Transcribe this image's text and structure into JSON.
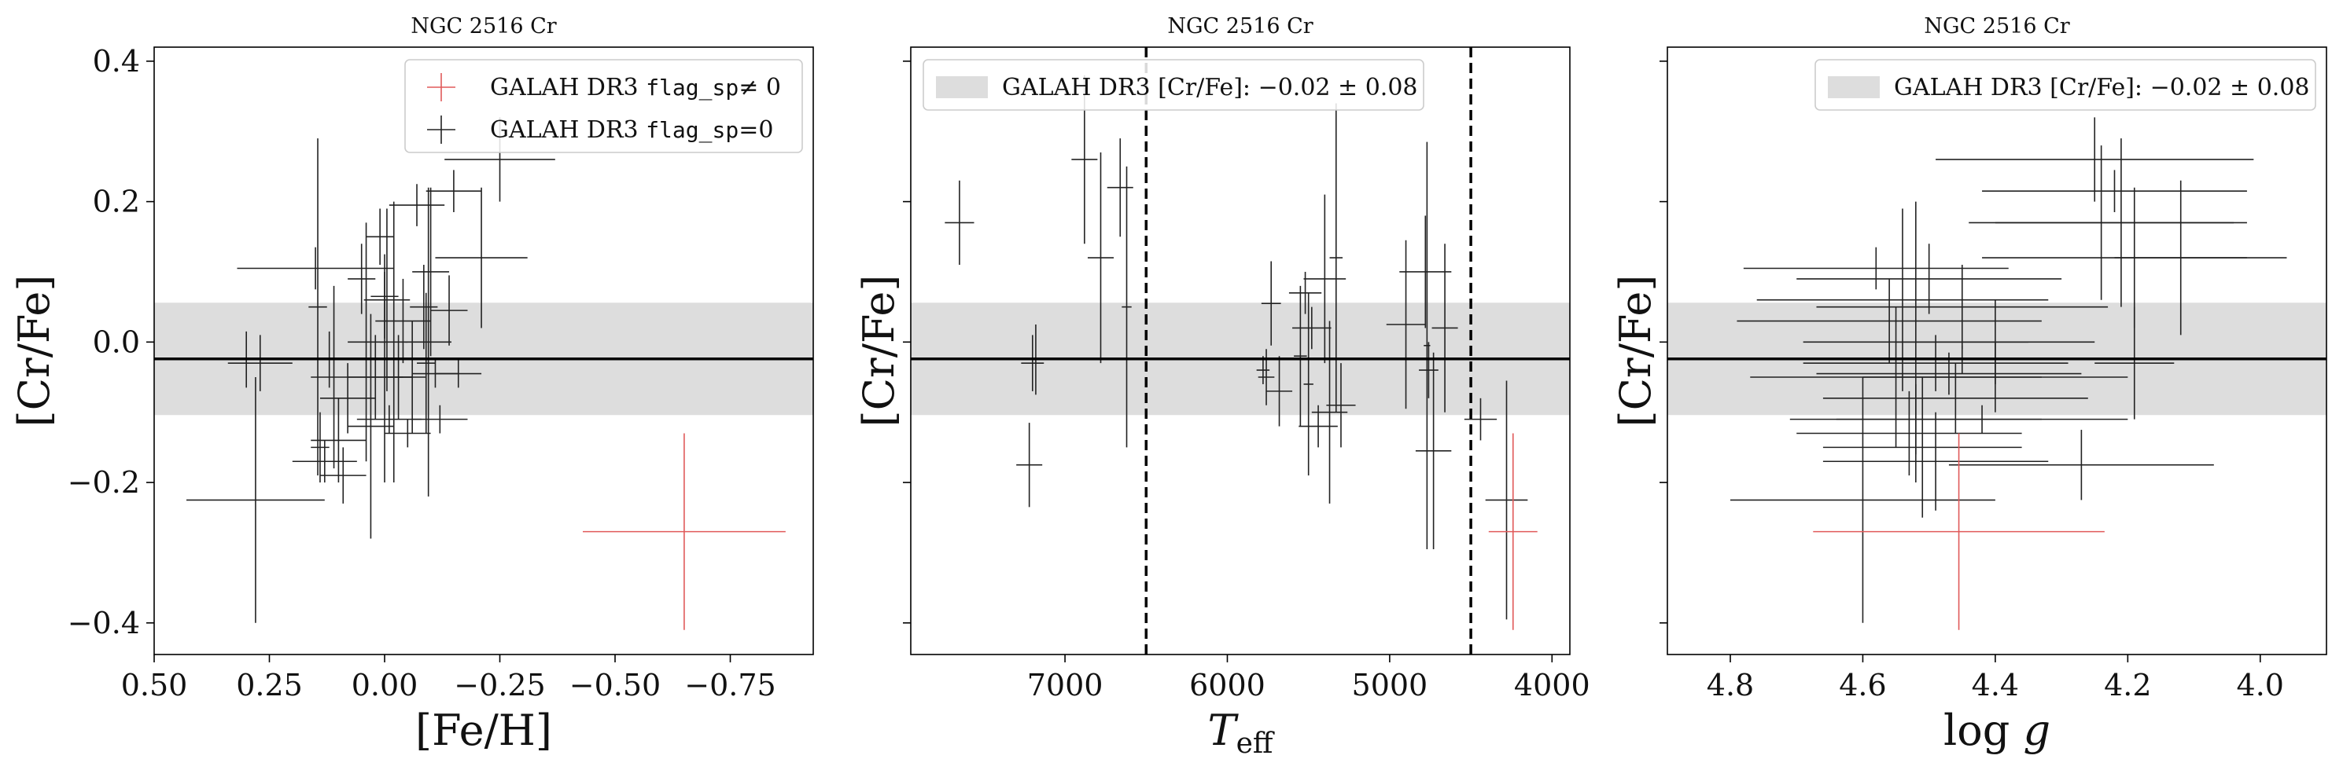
{
  "chart_data": [
    {
      "type": "scatter",
      "title": "NGC 2516 Cr",
      "xlabel": "[Fe/H]",
      "ylabel": "[Cr/Fe]",
      "xlim": [
        0.5,
        -0.93
      ],
      "ylim": [
        -0.445,
        0.42
      ],
      "xticks": [
        0.5,
        0.25,
        0.0,
        -0.25,
        -0.5,
        -0.75
      ],
      "xtick_labels": [
        "0.50",
        "0.25",
        "0.00",
        "−0.25",
        "−0.50",
        "−0.75"
      ],
      "yticks": [
        0.4,
        0.2,
        0.0,
        -0.2,
        -0.4
      ],
      "ytick_labels": [
        "0.4",
        "0.2",
        "0.0",
        "−0.2",
        "−0.4"
      ],
      "show_ytick_labels": true,
      "band": {
        "center": -0.024,
        "low": -0.104,
        "high": 0.056
      },
      "hline": -0.024,
      "vlines": [],
      "legend": {
        "position": "top-right",
        "entries": [
          {
            "text": "GALAH DR3 ",
            "code": "flag_sp",
            "suffix": "≠ 0",
            "color": "#e05a5a",
            "marker": "cross"
          },
          {
            "text": "GALAH DR3 ",
            "code": "flag_sp",
            "suffix": "=0",
            "color": "#222222",
            "marker": "cross"
          }
        ]
      },
      "series": [
        {
          "color": "#222222",
          "points": [
            {
              "x": 0.28,
              "y": -0.225,
              "xerr": 0.15,
              "yerr": 0.175
            },
            {
              "x": 0.3,
              "y": -0.025,
              "xerr": 0.05,
              "yerr": 0.04
            },
            {
              "x": 0.27,
              "y": -0.03,
              "xerr": 0.07,
              "yerr": 0.04
            },
            {
              "x": 0.15,
              "y": 0.105,
              "xerr": 0.17,
              "yerr": 0.03
            },
            {
              "x": 0.145,
              "y": 0.05,
              "xerr": 0.02,
              "yerr": 0.24
            },
            {
              "x": 0.14,
              "y": -0.15,
              "xerr": 0.02,
              "yerr": 0.05
            },
            {
              "x": 0.13,
              "y": -0.17,
              "xerr": 0.07,
              "yerr": 0.03
            },
            {
              "x": 0.12,
              "y": -0.025,
              "xerr": 0.02,
              "yerr": 0.04
            },
            {
              "x": 0.11,
              "y": -0.05,
              "xerr": 0.05,
              "yerr": 0.13
            },
            {
              "x": 0.1,
              "y": -0.14,
              "xerr": 0.06,
              "yerr": 0.06
            },
            {
              "x": 0.09,
              "y": -0.19,
              "xerr": 0.05,
              "yerr": 0.04
            },
            {
              "x": 0.08,
              "y": -0.08,
              "xerr": 0.06,
              "yerr": 0.05
            },
            {
              "x": 0.05,
              "y": 0.09,
              "xerr": 0.03,
              "yerr": 0.05
            },
            {
              "x": 0.04,
              "y": 0.0,
              "xerr": 0.04,
              "yerr": 0.17
            },
            {
              "x": 0.03,
              "y": -0.12,
              "xerr": 0.05,
              "yerr": 0.16
            },
            {
              "x": 0.02,
              "y": -0.05,
              "xerr": 0.06,
              "yerr": 0.06
            },
            {
              "x": 0.01,
              "y": 0.15,
              "xerr": 0.03,
              "yerr": 0.04
            },
            {
              "x": 0.0,
              "y": 0.065,
              "xerr": 0.03,
              "yerr": 0.06
            },
            {
              "x": 0.0,
              "y": -0.05,
              "xerr": 0.06,
              "yerr": 0.15
            },
            {
              "x": -0.005,
              "y": 0.06,
              "xerr": 0.05,
              "yerr": 0.13
            },
            {
              "x": -0.01,
              "y": -0.11,
              "xerr": 0.07,
              "yerr": 0.02
            },
            {
              "x": -0.02,
              "y": 0.0,
              "xerr": 0.03,
              "yerr": 0.2
            },
            {
              "x": -0.03,
              "y": -0.05,
              "xerr": 0.03,
              "yerr": 0.06
            },
            {
              "x": -0.04,
              "y": 0.03,
              "xerr": 0.06,
              "yerr": 0.06
            },
            {
              "x": -0.05,
              "y": -0.13,
              "xerr": 0.05,
              "yerr": 0.02
            },
            {
              "x": -0.06,
              "y": -0.05,
              "xerr": 0.03,
              "yerr": 0.08
            },
            {
              "x": -0.07,
              "y": 0.195,
              "xerr": 0.06,
              "yerr": 0.03
            },
            {
              "x": -0.085,
              "y": 0.05,
              "xerr": 0.03,
              "yerr": 0.06
            },
            {
              "x": -0.09,
              "y": -0.03,
              "xerr": 0.02,
              "yerr": 0.1
            },
            {
              "x": -0.095,
              "y": 0.0,
              "xerr": 0.05,
              "yerr": 0.22
            },
            {
              "x": -0.1,
              "y": 0.1,
              "xerr": 0.04,
              "yerr": 0.12
            },
            {
              "x": -0.11,
              "y": -0.045,
              "xerr": 0.05,
              "yerr": 0.02
            },
            {
              "x": -0.12,
              "y": -0.11,
              "xerr": 0.06,
              "yerr": 0.02
            },
            {
              "x": -0.14,
              "y": 0.045,
              "xerr": 0.04,
              "yerr": 0.05
            },
            {
              "x": -0.15,
              "y": 0.215,
              "xerr": 0.06,
              "yerr": 0.03
            },
            {
              "x": -0.16,
              "y": -0.045,
              "xerr": 0.05,
              "yerr": 0.02
            },
            {
              "x": -0.21,
              "y": 0.12,
              "xerr": 0.1,
              "yerr": 0.1
            },
            {
              "x": -0.25,
              "y": 0.26,
              "xerr": 0.12,
              "yerr": 0.06
            }
          ]
        },
        {
          "color": "#e05a5a",
          "points": [
            {
              "x": -0.65,
              "y": -0.27,
              "xerr": 0.22,
              "yerr": 0.14
            }
          ]
        }
      ]
    },
    {
      "type": "scatter",
      "title": "NGC 2516 Cr",
      "xlabel": "T_eff",
      "ylabel": "[Cr/Fe]",
      "xlim": [
        7950,
        3890
      ],
      "ylim": [
        -0.445,
        0.42
      ],
      "xticks": [
        7000,
        6000,
        5000,
        4000
      ],
      "xtick_labels": [
        "7000",
        "6000",
        "5000",
        "4000"
      ],
      "yticks": [
        0.4,
        0.2,
        0.0,
        -0.2,
        -0.4
      ],
      "ytick_labels": [],
      "show_ytick_labels": false,
      "band": {
        "center": -0.024,
        "low": -0.104,
        "high": 0.056
      },
      "hline": -0.024,
      "vlines": [
        6500,
        4500
      ],
      "legend": {
        "position": "top-left",
        "entries": [
          {
            "text": "GALAH DR3 [Cr/Fe]: ",
            "code": "",
            "suffix": "−0.02 ± 0.08",
            "color": "#dddddd",
            "marker": "patch"
          }
        ]
      },
      "series": [
        {
          "color": "#222222",
          "points": [
            {
              "x": 7650,
              "y": 0.17,
              "xerr": 90,
              "yerr": 0.06
            },
            {
              "x": 7200,
              "y": -0.03,
              "xerr": 70,
              "yerr": 0.04
            },
            {
              "x": 7180,
              "y": -0.025,
              "xerr": 40,
              "yerr": 0.05
            },
            {
              "x": 7220,
              "y": -0.175,
              "xerr": 80,
              "yerr": 0.06
            },
            {
              "x": 6880,
              "y": 0.26,
              "xerr": 80,
              "yerr": 0.12
            },
            {
              "x": 6780,
              "y": 0.12,
              "xerr": 80,
              "yerr": 0.15
            },
            {
              "x": 6660,
              "y": 0.22,
              "xerr": 80,
              "yerr": 0.07
            },
            {
              "x": 6620,
              "y": 0.05,
              "xerr": 30,
              "yerr": 0.2
            },
            {
              "x": 5780,
              "y": -0.04,
              "xerr": 40,
              "yerr": 0.02
            },
            {
              "x": 5760,
              "y": -0.05,
              "xerr": 50,
              "yerr": 0.04
            },
            {
              "x": 5730,
              "y": 0.055,
              "xerr": 60,
              "yerr": 0.06
            },
            {
              "x": 5680,
              "y": -0.07,
              "xerr": 80,
              "yerr": 0.05
            },
            {
              "x": 5550,
              "y": -0.02,
              "xerr": 40,
              "yerr": 0.1
            },
            {
              "x": 5520,
              "y": 0.07,
              "xerr": 100,
              "yerr": 0.03
            },
            {
              "x": 5500,
              "y": -0.06,
              "xerr": 30,
              "yerr": 0.13
            },
            {
              "x": 5480,
              "y": 0.02,
              "xerr": 120,
              "yerr": 0.03
            },
            {
              "x": 5440,
              "y": -0.12,
              "xerr": 120,
              "yerr": 0.03
            },
            {
              "x": 5400,
              "y": 0.09,
              "xerr": 130,
              "yerr": 0.12
            },
            {
              "x": 5370,
              "y": -0.1,
              "xerr": 110,
              "yerr": 0.13
            },
            {
              "x": 5330,
              "y": 0.12,
              "xerr": 40,
              "yerr": 0.22
            },
            {
              "x": 5300,
              "y": -0.09,
              "xerr": 90,
              "yerr": 0.06
            },
            {
              "x": 4900,
              "y": 0.025,
              "xerr": 120,
              "yerr": 0.12
            },
            {
              "x": 4780,
              "y": 0.1,
              "xerr": 160,
              "yerr": 0.08
            },
            {
              "x": 4770,
              "y": -0.005,
              "xerr": 20,
              "yerr": 0.29
            },
            {
              "x": 4760,
              "y": -0.04,
              "xerr": 60,
              "yerr": 0.04
            },
            {
              "x": 4730,
              "y": -0.155,
              "xerr": 110,
              "yerr": 0.14
            },
            {
              "x": 4660,
              "y": 0.02,
              "xerr": 80,
              "yerr": 0.12
            },
            {
              "x": 4440,
              "y": -0.11,
              "xerr": 100,
              "yerr": 0.03
            },
            {
              "x": 4280,
              "y": -0.225,
              "xerr": 130,
              "yerr": 0.17
            }
          ]
        },
        {
          "color": "#e05a5a",
          "points": [
            {
              "x": 4240,
              "y": -0.27,
              "xerr": 150,
              "yerr": 0.14
            }
          ]
        }
      ]
    },
    {
      "type": "scatter",
      "title": "NGC 2516 Cr",
      "xlabel": "log g",
      "ylabel": "[Cr/Fe]",
      "xlim": [
        4.895,
        3.9
      ],
      "ylim": [
        -0.445,
        0.42
      ],
      "xticks": [
        4.8,
        4.6,
        4.4,
        4.2,
        4.0
      ],
      "xtick_labels": [
        "4.8",
        "4.6",
        "4.4",
        "4.2",
        "4.0"
      ],
      "yticks": [
        0.4,
        0.2,
        0.0,
        -0.2,
        -0.4
      ],
      "ytick_labels": [],
      "show_ytick_labels": false,
      "band": {
        "center": -0.024,
        "low": -0.104,
        "high": 0.056
      },
      "hline": -0.024,
      "vlines": [],
      "legend": {
        "position": "top-right",
        "entries": [
          {
            "text": "GALAH DR3 [Cr/Fe]: ",
            "code": "",
            "suffix": "−0.02 ± 0.08",
            "color": "#dddddd",
            "marker": "patch"
          }
        ]
      },
      "series": [
        {
          "color": "#222222",
          "points": [
            {
              "x": 4.6,
              "y": -0.225,
              "xerr": 0.2,
              "yerr": 0.175
            },
            {
              "x": 4.58,
              "y": 0.105,
              "xerr": 0.2,
              "yerr": 0.03
            },
            {
              "x": 4.56,
              "y": 0.03,
              "xerr": 0.23,
              "yerr": 0.06
            },
            {
              "x": 4.55,
              "y": -0.05,
              "xerr": 0.22,
              "yerr": 0.1
            },
            {
              "x": 4.54,
              "y": 0.06,
              "xerr": 0.22,
              "yerr": 0.13
            },
            {
              "x": 4.53,
              "y": -0.13,
              "xerr": 0.17,
              "yerr": 0.06
            },
            {
              "x": 4.52,
              "y": -0.11,
              "xerr": 0.19,
              "yerr": 0.05
            },
            {
              "x": 4.52,
              "y": 0.0,
              "xerr": 0.17,
              "yerr": 0.2
            },
            {
              "x": 4.51,
              "y": -0.15,
              "xerr": 0.15,
              "yerr": 0.1
            },
            {
              "x": 4.5,
              "y": 0.09,
              "xerr": 0.2,
              "yerr": 0.05
            },
            {
              "x": 4.49,
              "y": -0.17,
              "xerr": 0.17,
              "yerr": 0.07
            },
            {
              "x": 4.49,
              "y": -0.03,
              "xerr": 0.2,
              "yerr": 0.04
            },
            {
              "x": 4.47,
              "y": -0.045,
              "xerr": 0.2,
              "yerr": 0.03
            },
            {
              "x": 4.46,
              "y": -0.08,
              "xerr": 0.2,
              "yerr": 0.05
            },
            {
              "x": 4.45,
              "y": 0.05,
              "xerr": 0.22,
              "yerr": 0.06
            },
            {
              "x": 4.45,
              "y": -0.025,
              "xerr": 0.24,
              "yerr": 0.02
            },
            {
              "x": 4.42,
              "y": -0.11,
              "xerr": 0.22,
              "yerr": 0.02
            },
            {
              "x": 4.4,
              "y": -0.05,
              "xerr": 0.2,
              "yerr": 0.05
            },
            {
              "x": 4.4,
              "y": 0.0,
              "xerr": 0.15,
              "yerr": 0.06
            },
            {
              "x": 4.27,
              "y": -0.175,
              "xerr": 0.2,
              "yerr": 0.05
            },
            {
              "x": 4.25,
              "y": 0.26,
              "xerr": 0.24,
              "yerr": 0.06
            },
            {
              "x": 4.24,
              "y": 0.17,
              "xerr": 0.2,
              "yerr": 0.11
            },
            {
              "x": 4.22,
              "y": 0.215,
              "xerr": 0.2,
              "yerr": 0.03
            },
            {
              "x": 4.21,
              "y": 0.17,
              "xerr": 0.19,
              "yerr": 0.12
            },
            {
              "x": 4.19,
              "y": 0.12,
              "xerr": 0.23,
              "yerr": 0.1
            },
            {
              "x": 4.19,
              "y": -0.03,
              "xerr": 0.06,
              "yerr": 0.08
            },
            {
              "x": 4.12,
              "y": 0.12,
              "xerr": 0.1,
              "yerr": 0.11
            }
          ]
        },
        {
          "color": "#e05a5a",
          "points": [
            {
              "x": 4.455,
              "y": -0.27,
              "xerr": 0.22,
              "yerr": 0.14
            }
          ]
        }
      ]
    }
  ]
}
